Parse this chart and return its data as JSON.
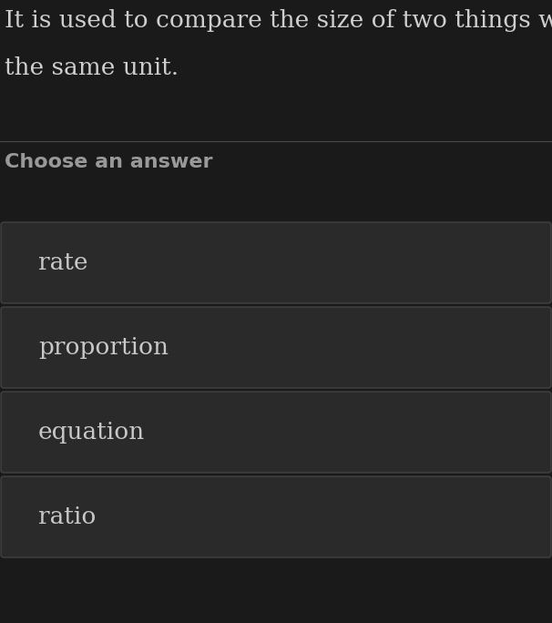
{
  "background_color": "#1a1a1a",
  "question_text_line1": "It is used to compare the size of two things with",
  "question_text_line2": "the same unit.",
  "question_text_color": "#d0cece",
  "question_fontsize": 19,
  "divider_color": "#4a4a4a",
  "choose_label": "Choose an answer",
  "choose_color": "#999999",
  "choose_fontsize": 16,
  "choices": [
    "rate",
    "proportion",
    "equation",
    "ratio"
  ],
  "choice_bg_color": "#2a2a2a",
  "choice_text_color": "#c8c8c8",
  "choice_fontsize": 19,
  "choice_border_color": "#4a4a4a",
  "fig_width": 6.06,
  "fig_height": 6.84,
  "dpi": 100
}
